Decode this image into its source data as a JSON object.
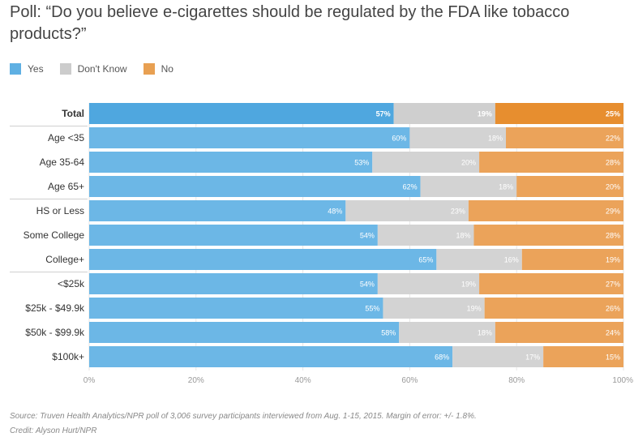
{
  "title": "Poll: “Do you believe e-cigarettes should be regulated by the FDA like tobacco products?”",
  "legend": [
    {
      "label": "Yes",
      "color": "#5fb0e3"
    },
    {
      "label": "Don't Know",
      "color": "#cccccc"
    },
    {
      "label": "No",
      "color": "#e8a052"
    }
  ],
  "source": "Source: Truven Health Analytics/NPR poll of 3,006 survey participants interviewed from Aug. 1-15, 2015. Margin of error: +/- 1.8%.",
  "credit": "Credit: Alyson Hurt/NPR",
  "chart_data": {
    "type": "bar",
    "orientation": "horizontal",
    "stacked": true,
    "title": "Poll: “Do you believe e-cigarettes should be regulated by the FDA like tobacco products?”",
    "categories": [
      "Total",
      "Age <35",
      "Age 35-64",
      "Age 65+",
      "HS or Less",
      "Some College",
      "College+",
      "<$25k",
      "$25k - $49.9k",
      "$50k - $99.9k",
      "$100k+"
    ],
    "highlight_category": "Total",
    "group_breaks_after": [
      "Total",
      "Age 65+",
      "College+"
    ],
    "series": [
      {
        "name": "Yes",
        "color": "#6cb7e6",
        "highlight_color": "#4fa7df",
        "values": [
          57,
          60,
          53,
          62,
          48,
          54,
          65,
          54,
          55,
          58,
          68
        ]
      },
      {
        "name": "Don't Know",
        "color": "#d3d3d3",
        "highlight_color": "#cfcfcf",
        "values": [
          19,
          18,
          20,
          18,
          23,
          18,
          16,
          19,
          19,
          18,
          17
        ]
      },
      {
        "name": "No",
        "color": "#eba35a",
        "highlight_color": "#e78e2f",
        "values": [
          25,
          22,
          28,
          20,
          29,
          28,
          19,
          27,
          26,
          24,
          15
        ]
      }
    ],
    "value_labels": [
      [
        "57%",
        "60%",
        "53%",
        "62%",
        "48%",
        "54%",
        "65%",
        "54%",
        "55%",
        "58%",
        "68%"
      ],
      [
        "19%",
        "18%",
        "20%",
        "18%",
        "23%",
        "18%",
        "16%",
        "19%",
        "19%",
        "18%",
        "17%"
      ],
      [
        "25%",
        "22%",
        "28%",
        "20%",
        "29%",
        "28%",
        "19%",
        "27%",
        "26%",
        "24%",
        "15%"
      ]
    ],
    "xlim": [
      0,
      100
    ],
    "xticks": [
      "0%",
      "20%",
      "40%",
      "60%",
      "80%",
      "100%"
    ],
    "xtick_values": [
      0,
      20,
      40,
      60,
      80,
      100
    ],
    "grid": true,
    "legend_position": "top-left"
  }
}
